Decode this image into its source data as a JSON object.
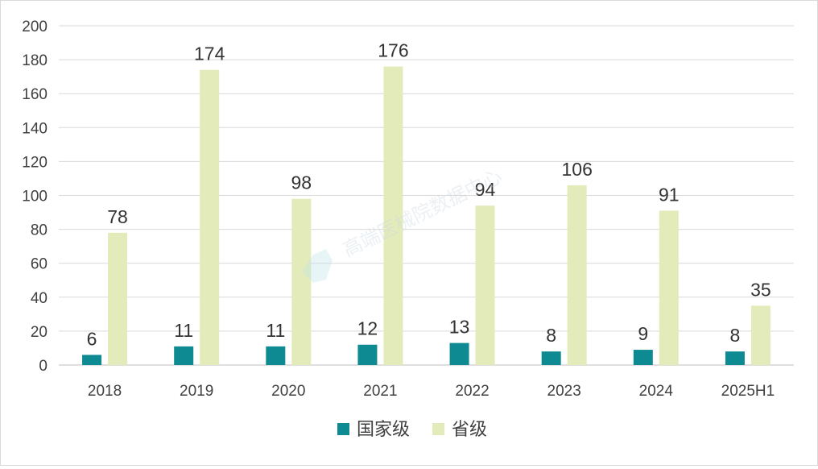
{
  "chart_data": {
    "type": "bar",
    "title": "",
    "xlabel": "",
    "ylabel": "",
    "categories": [
      "2018",
      "2019",
      "2020",
      "2021",
      "2022",
      "2023",
      "2024",
      "2025H1"
    ],
    "series": [
      {
        "name": "国家级",
        "color": "#0e8a93",
        "values": [
          6,
          11,
          11,
          12,
          13,
          8,
          9,
          8
        ]
      },
      {
        "name": "省级",
        "color": "#e4ebbb",
        "values": [
          78,
          174,
          98,
          176,
          94,
          106,
          91,
          35
        ]
      }
    ],
    "ylim": [
      0,
      200
    ],
    "yticks": [
      0,
      20,
      40,
      60,
      80,
      100,
      120,
      140,
      160,
      180,
      200
    ],
    "grid": true,
    "legend_position": "bottom-center"
  },
  "watermark": "高端医械院数据中心"
}
